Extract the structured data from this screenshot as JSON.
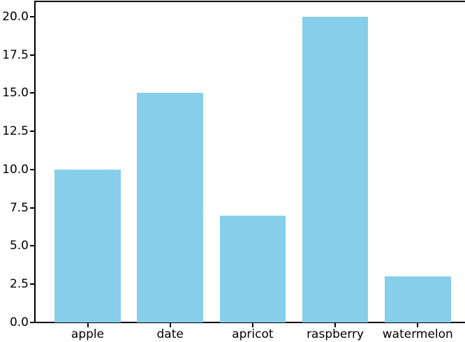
{
  "chart_data": {
    "type": "bar",
    "categories": [
      "apple",
      "date",
      "apricot",
      "raspberry",
      "watermelon"
    ],
    "values": [
      10,
      15,
      7,
      20,
      3
    ],
    "title": "",
    "xlabel": "",
    "ylabel": "",
    "ylim": [
      0,
      21
    ],
    "yticks": [
      0.0,
      2.5,
      5.0,
      7.5,
      10.0,
      12.5,
      15.0,
      17.5,
      20.0
    ],
    "ytick_labels": [
      "0.0",
      "2.5",
      "5.0",
      "7.5",
      "10.0",
      "12.5",
      "15.0",
      "17.5",
      "20.0"
    ],
    "grid": false,
    "legend": "none",
    "bar_color": "#87CEEB",
    "axis_color": "#000000",
    "text_color": "#000000",
    "background_color": "#ffffff"
  }
}
